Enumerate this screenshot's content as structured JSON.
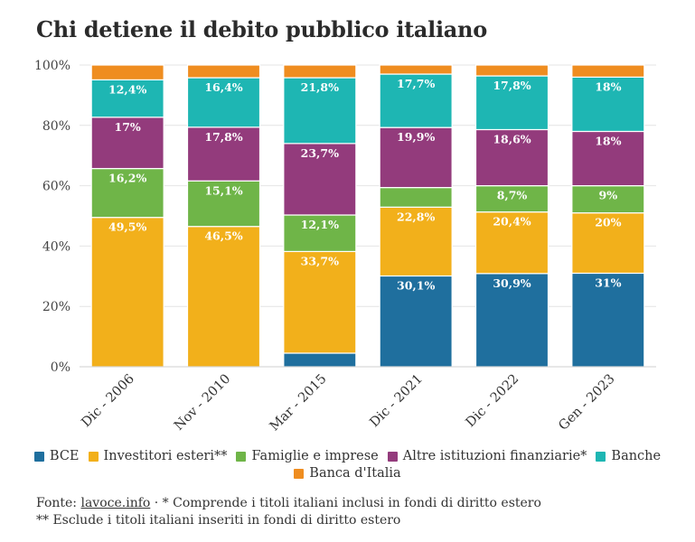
{
  "title": "Chi detiene il debito pubblico italiano",
  "chart_data": {
    "type": "bar",
    "stacked": true,
    "categories": [
      "Dic - 2006",
      "Nov - 2010",
      "Mar - 2015",
      "Dic - 2021",
      "Dic - 2022",
      "Gen - 2023"
    ],
    "ylim": [
      0,
      100
    ],
    "yticks": [
      "0%",
      "20%",
      "40%",
      "60%",
      "80%",
      "100%"
    ],
    "grid": true,
    "series": [
      {
        "name": "BCE",
        "color": "#1f6f9e",
        "values": [
          0,
          0,
          4.5,
          30.1,
          30.9,
          31
        ],
        "labels": [
          "",
          "",
          "",
          "30,1%",
          "30,9%",
          "31%"
        ]
      },
      {
        "name": "Investitori esteri**",
        "color": "#f2b01b",
        "values": [
          49.5,
          46.5,
          33.7,
          22.8,
          20.4,
          20
        ],
        "labels": [
          "49,5%",
          "46,5%",
          "33,7%",
          "22,8%",
          "20,4%",
          "20%"
        ]
      },
      {
        "name": "Famiglie e imprese",
        "color": "#6fb548",
        "values": [
          16.2,
          15.1,
          12.1,
          6.5,
          8.7,
          9
        ],
        "labels": [
          "16,2%",
          "15,1%",
          "12,1%",
          "",
          "8,7%",
          "9%"
        ]
      },
      {
        "name": "Altre istituzioni finanziarie*",
        "color": "#933b7c",
        "values": [
          17,
          17.8,
          23.7,
          19.9,
          18.6,
          18
        ],
        "labels": [
          "17%",
          "17,8%",
          "23,7%",
          "19,9%",
          "18,6%",
          "18%"
        ]
      },
      {
        "name": "Banche",
        "color": "#1eb6b3",
        "values": [
          12.4,
          16.4,
          21.8,
          17.7,
          17.8,
          18
        ],
        "labels": [
          "12,4%",
          "16,4%",
          "21,8%",
          "17,7%",
          "17,8%",
          "18%"
        ]
      },
      {
        "name": "Banca d'Italia",
        "color": "#ef8d20",
        "values": [
          4.9,
          4.2,
          4.2,
          3,
          3.6,
          4
        ],
        "labels": [
          "",
          "",
          "",
          "",
          "",
          ""
        ]
      }
    ]
  },
  "footer": {
    "source_prefix": "Fonte: ",
    "source_link": "lavoce.info",
    "note1": " · * Comprende i titoli italiani inclusi in fondi di diritto estero",
    "note2": "** Esclude i titoli italiani inseriti in fondi di diritto estero"
  }
}
